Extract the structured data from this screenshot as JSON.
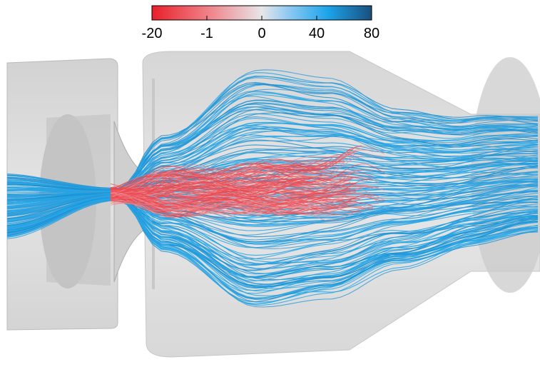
{
  "colorbar": {
    "tick_labels": [
      "-20",
      "-1",
      "0",
      "40",
      "80"
    ]
  }
}
